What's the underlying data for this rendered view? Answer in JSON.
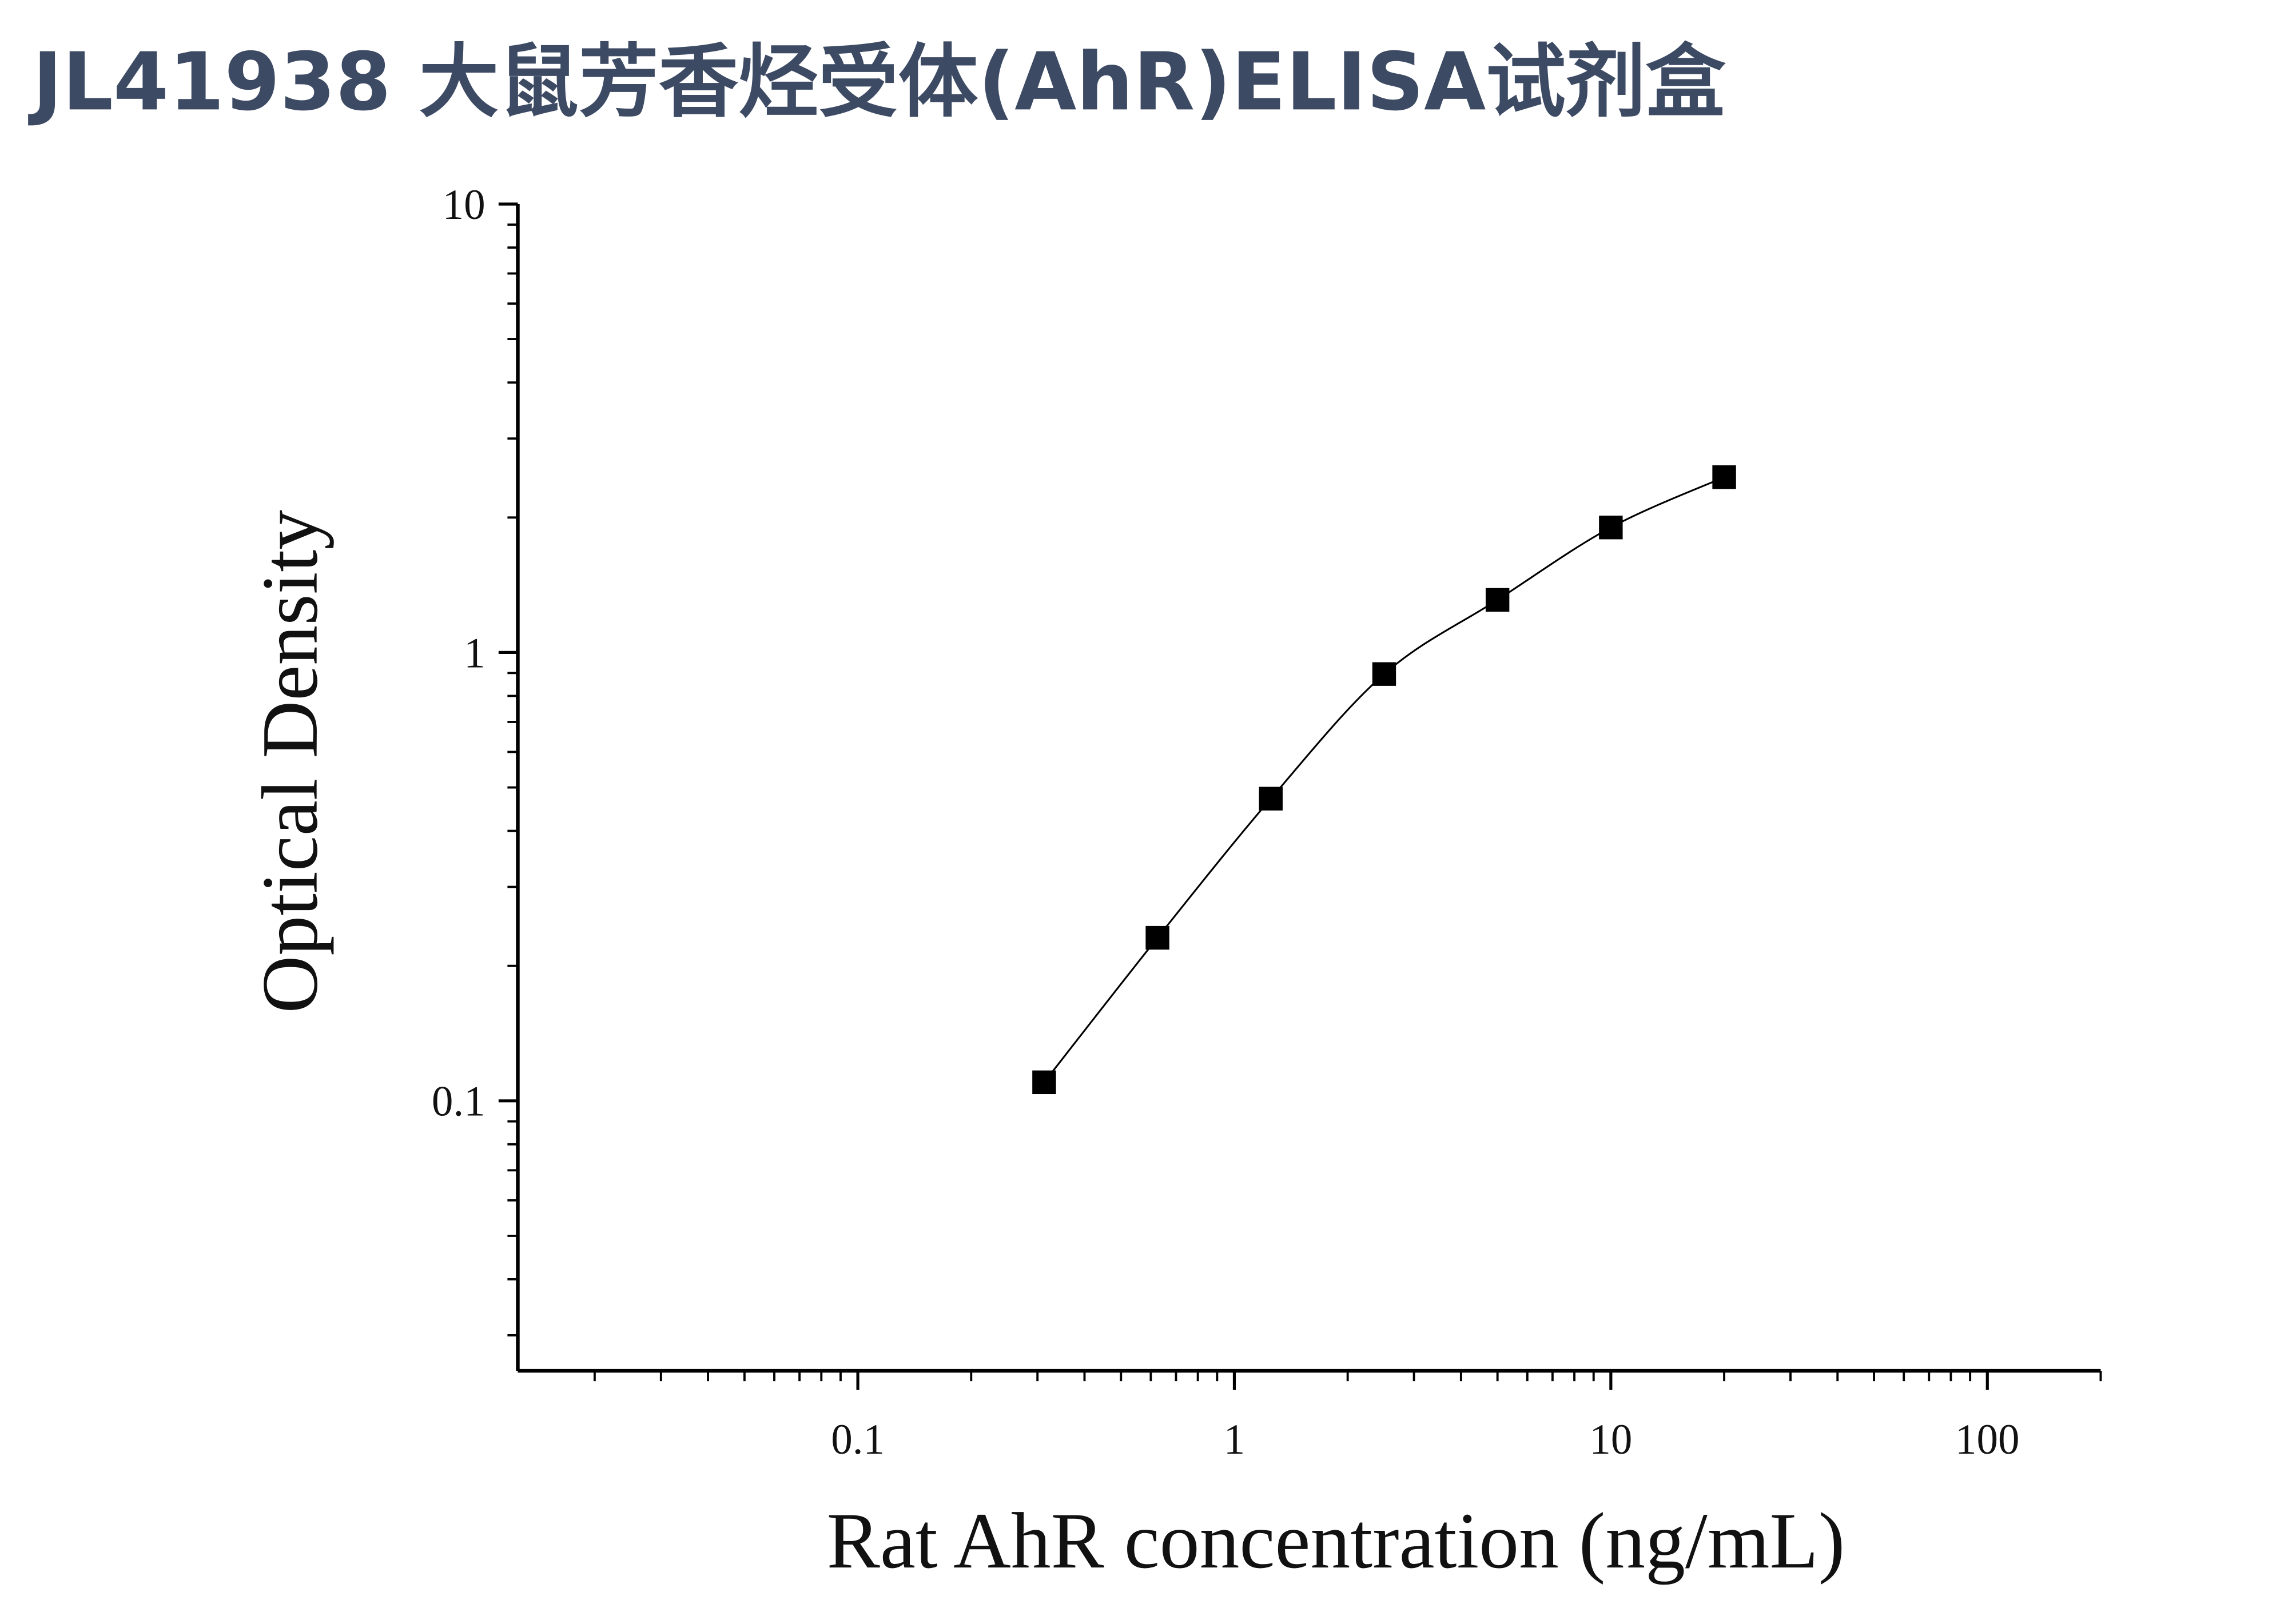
{
  "chart_data": {
    "type": "scatter",
    "title": "JL41938 大鼠芳香烃受体(AhR)ELISA试剂盒",
    "x_label": "Rat AhR concentration (ng/mL)",
    "y_label": "Optical Density",
    "x_scale": "log",
    "y_scale": "log",
    "xlim": [
      0.0125,
      200
    ],
    "ylim": [
      0.025,
      10
    ],
    "xticks": [
      0.1,
      1,
      10,
      100
    ],
    "yticks": [
      0.1,
      1,
      10
    ],
    "color": "#000000",
    "x": [
      0.3125,
      0.625,
      1.25,
      2.5,
      5,
      10,
      20
    ],
    "values": [
      0.11,
      0.231,
      0.472,
      0.895,
      1.31,
      1.9,
      2.46
    ]
  }
}
